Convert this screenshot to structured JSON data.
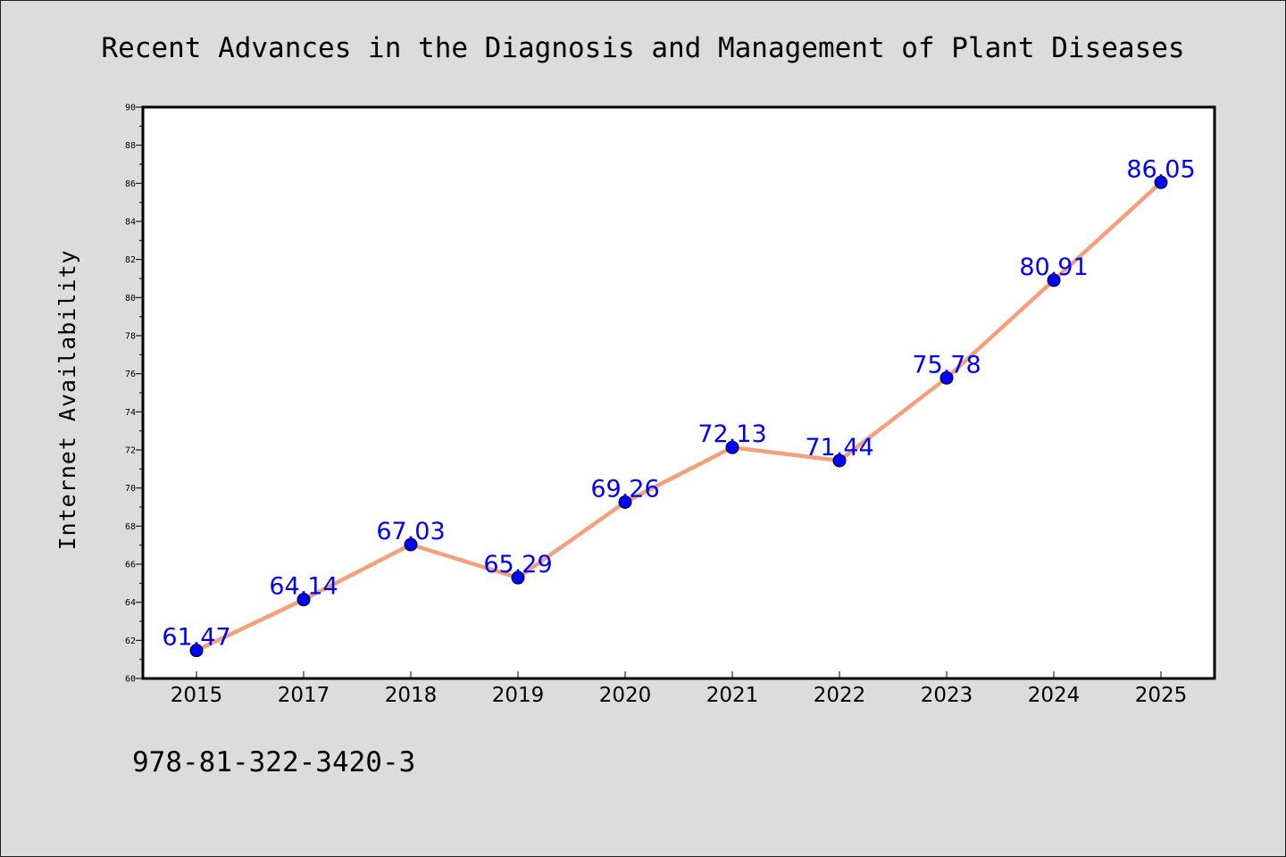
{
  "chart_data": {
    "type": "line",
    "title": "Recent Advances in the Diagnosis and Management of Plant Diseases",
    "ylabel": "Internet Availability",
    "xlabel": "",
    "categories": [
      "2015",
      "2017",
      "2018",
      "2019",
      "2020",
      "2021",
      "2022",
      "2023",
      "2024",
      "2025"
    ],
    "values": [
      61.47,
      64.14,
      67.03,
      65.29,
      69.26,
      72.13,
      71.44,
      75.78,
      80.91,
      86.05
    ],
    "data_labels": [
      "61.47",
      "64.14",
      "67.03",
      "65.29",
      "69.26",
      "72.13",
      "71.44",
      "75.78",
      "80.91",
      "86.05"
    ],
    "ylim": [
      60,
      90
    ],
    "yticks": [
      60,
      62,
      64,
      66,
      68,
      70,
      72,
      74,
      76,
      78,
      80,
      82,
      84,
      86,
      88,
      90
    ],
    "grid": false,
    "legend": "none",
    "line_color": "#f4a07a",
    "marker_color": "#0000ff",
    "label_color": "#0000ff",
    "background_color": "#dcdcdc",
    "plot_background": "#ffffff"
  },
  "footer": {
    "isbn": "978-81-322-3420-3"
  }
}
